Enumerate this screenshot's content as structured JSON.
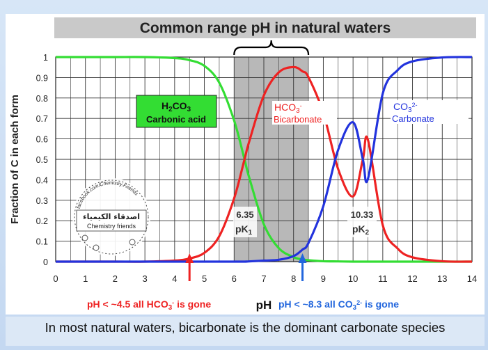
{
  "chart_data": {
    "type": "line",
    "title": "Common range pH in natural waters",
    "xlabel": "pH",
    "ylabel": "Fraction of C in each form",
    "xlim": [
      0,
      14
    ],
    "ylim": [
      0,
      1
    ],
    "x_ticks": [
      "0",
      "1",
      "2",
      "3",
      "4",
      "5",
      "6",
      "7",
      "8",
      "9",
      "10",
      "11",
      "12",
      "13",
      "14"
    ],
    "y_ticks": [
      "0",
      "0.1",
      "0.2",
      "0.3",
      "0.4",
      "0.5",
      "0.6",
      "0.7",
      "0.8",
      "0.9",
      "1"
    ],
    "grid": true,
    "x": [
      0,
      1,
      2,
      3,
      4,
      4.5,
      5,
      5.5,
      6,
      6.35,
      6.5,
      7,
      7.5,
      8,
      8.3,
      8.5,
      9,
      9.5,
      10,
      10.33,
      10.5,
      11,
      11.5,
      12,
      13,
      14
    ],
    "series": [
      {
        "label_main": "H2CO3",
        "label_sub": "Carbonic acid",
        "color": "#33dd33",
        "values": [
          1,
          1,
          1,
          1,
          0.995,
          0.985,
          0.957,
          0.875,
          0.69,
          0.5,
          0.415,
          0.183,
          0.066,
          0.022,
          0.011,
          0.007,
          0.002,
          0.001,
          0,
          0,
          0,
          0,
          0,
          0,
          0,
          0
        ]
      },
      {
        "label_main": "HCO3",
        "label_sup": "-",
        "label_sub": "Bicarbonate",
        "color": "#ee2222",
        "values": [
          0,
          0,
          0,
          0,
          0.005,
          0.015,
          0.043,
          0.124,
          0.309,
          0.5,
          0.583,
          0.812,
          0.925,
          0.951,
          0.93,
          0.902,
          0.727,
          0.452,
          0.319,
          0.5,
          0.596,
          0.178,
          0.064,
          0.021,
          0.002,
          0
        ]
      },
      {
        "label_main": "CO3",
        "label_sup": "2-",
        "label_sub": "Carbonate",
        "color": "#2233dd",
        "values": [
          0,
          0,
          0,
          0,
          0,
          0,
          0,
          0,
          0,
          0,
          0.001,
          0.005,
          0.009,
          0.027,
          0.059,
          0.091,
          0.271,
          0.547,
          0.681,
          0.5,
          0.404,
          0.822,
          0.936,
          0.979,
          0.998,
          1
        ]
      }
    ],
    "shaded_range": [
      6,
      8.5
    ],
    "shaded_label": "",
    "annotations": {
      "pk1_value": "6.35",
      "pk1_label": "pK",
      "pk1_sub": "1",
      "pk2_value": "10.33",
      "pk2_label": "pK",
      "pk2_sub": "2",
      "arrow_left_ph": 4.5,
      "arrow_right_ph": 8.3,
      "note_left_a": "pH < ~4.5 all HCO",
      "note_left_sub": "3",
      "note_left_sup": "-",
      "note_left_b": " is gone",
      "note_right_a": "pH < ~8.3 all CO",
      "note_right_sub": "3",
      "note_right_sup": "2-",
      "note_right_b": " is gone"
    },
    "legend_placement": "inline"
  },
  "watermark": {
    "ring_text": "facebook.com/Chemistry.Friends",
    "arabic": "اصدقاء الكيمياء",
    "english": "Chemistry friends"
  },
  "footer": {
    "text": "In most natural waters, bicarbonate is the dominant carbonate species"
  }
}
